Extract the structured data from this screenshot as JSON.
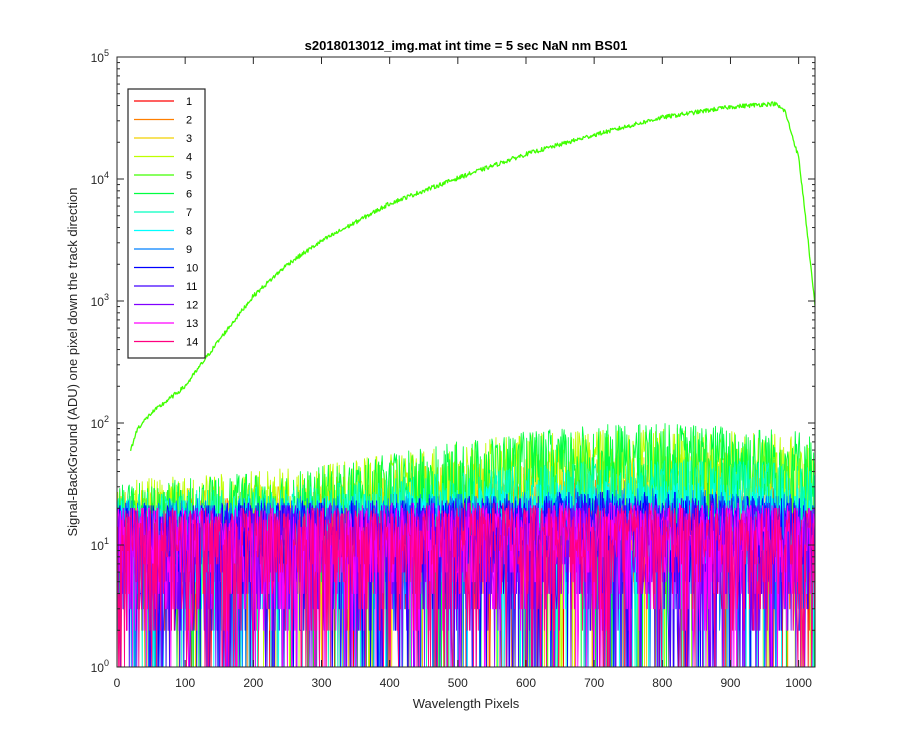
{
  "chart_data": {
    "type": "line",
    "title": "s2018013012_img.mat int time = 5 sec  NaN nm BS01",
    "xlabel": "Wavelength Pixels",
    "ylabel": "Signal-BackGround (ADU) one pixel down the track direction",
    "xlim": [
      0,
      1024
    ],
    "ylim": [
      1,
      100000
    ],
    "yscale": "log",
    "x_ticks": [
      "0",
      "100",
      "200",
      "300",
      "400",
      "500",
      "600",
      "700",
      "800",
      "900",
      "1000"
    ],
    "y_ticks": [
      {
        "base": "10",
        "exp": "0"
      },
      {
        "base": "10",
        "exp": "1"
      },
      {
        "base": "10",
        "exp": "2"
      },
      {
        "base": "10",
        "exp": "3"
      },
      {
        "base": "10",
        "exp": "4"
      },
      {
        "base": "10",
        "exp": "5"
      }
    ],
    "legend_position": "top-left",
    "grid": false,
    "series": [
      {
        "name": "1",
        "color": "#ff0000",
        "x": [
          0,
          100,
          200,
          300,
          400,
          500,
          600,
          700,
          800,
          900,
          1000,
          1024
        ],
        "values": [
          12,
          12,
          13,
          13,
          14,
          16,
          18,
          19,
          19,
          18,
          16,
          14
        ]
      },
      {
        "name": "2",
        "color": "#ff7f00",
        "x": [
          0,
          100,
          200,
          300,
          400,
          500,
          600,
          700,
          800,
          900,
          1000,
          1024
        ],
        "values": [
          13,
          13,
          14,
          15,
          16,
          18,
          20,
          21,
          21,
          20,
          18,
          15
        ]
      },
      {
        "name": "3",
        "color": "#f2d000",
        "x": [
          0,
          100,
          200,
          300,
          400,
          500,
          600,
          700,
          800,
          900,
          1000,
          1024
        ],
        "values": [
          15,
          16,
          17,
          19,
          22,
          26,
          30,
          33,
          33,
          31,
          28,
          24
        ]
      },
      {
        "name": "4",
        "color": "#bfff00",
        "x": [
          0,
          100,
          200,
          300,
          400,
          500,
          600,
          700,
          800,
          900,
          1000,
          1024
        ],
        "values": [
          18,
          20,
          22,
          25,
          30,
          38,
          44,
          48,
          50,
          47,
          42,
          36
        ]
      },
      {
        "name": "5",
        "color": "#40ff00",
        "x": [
          20,
          30,
          50,
          100,
          150,
          200,
          250,
          300,
          400,
          500,
          600,
          700,
          800,
          900,
          950,
          965,
          980,
          1000,
          1010,
          1024
        ],
        "values": [
          60,
          90,
          120,
          200,
          480,
          1100,
          2000,
          3100,
          6300,
          10200,
          16000,
          23000,
          32000,
          39000,
          41000,
          41500,
          36000,
          15000,
          5000,
          900
        ]
      },
      {
        "name": "6",
        "color": "#00ff40",
        "x": [
          0,
          100,
          200,
          300,
          400,
          500,
          600,
          700,
          800,
          900,
          1000,
          1024
        ],
        "values": [
          17,
          19,
          21,
          24,
          30,
          38,
          46,
          52,
          54,
          52,
          48,
          42
        ]
      },
      {
        "name": "7",
        "color": "#00ffbf",
        "x": [
          0,
          100,
          200,
          300,
          400,
          500,
          600,
          700,
          800,
          900,
          1000,
          1024
        ],
        "values": [
          14,
          15,
          16,
          17,
          19,
          22,
          25,
          27,
          28,
          27,
          25,
          22
        ]
      },
      {
        "name": "8",
        "color": "#00ffff",
        "x": [
          0,
          100,
          200,
          300,
          400,
          500,
          600,
          700,
          800,
          900,
          1000,
          1024
        ],
        "values": [
          13,
          13,
          14,
          14,
          15,
          16,
          17,
          18,
          18,
          17,
          16,
          14
        ]
      },
      {
        "name": "9",
        "color": "#0080ff",
        "x": [
          0,
          100,
          200,
          300,
          400,
          500,
          600,
          700,
          800,
          900,
          1000,
          1024
        ],
        "values": [
          13,
          13,
          13,
          14,
          14,
          15,
          15,
          16,
          16,
          15,
          14,
          13
        ]
      },
      {
        "name": "10",
        "color": "#0000ff",
        "x": [
          0,
          100,
          200,
          300,
          400,
          500,
          600,
          700,
          800,
          900,
          1000,
          1024
        ],
        "values": [
          12,
          12,
          12,
          13,
          13,
          14,
          14,
          15,
          15,
          14,
          13,
          12
        ]
      },
      {
        "name": "11",
        "color": "#4000ff",
        "x": [
          0,
          100,
          200,
          300,
          400,
          500,
          600,
          700,
          800,
          900,
          1000,
          1024
        ],
        "values": [
          11,
          11,
          12,
          12,
          12,
          13,
          13,
          13,
          13,
          13,
          12,
          11
        ]
      },
      {
        "name": "12",
        "color": "#8000ff",
        "x": [
          0,
          100,
          200,
          300,
          400,
          500,
          600,
          700,
          800,
          900,
          1000,
          1024
        ],
        "values": [
          11,
          11,
          11,
          12,
          12,
          12,
          12,
          12,
          12,
          12,
          11,
          11
        ]
      },
      {
        "name": "13",
        "color": "#ff00ff",
        "x": [
          0,
          100,
          200,
          300,
          400,
          500,
          600,
          700,
          800,
          900,
          1000,
          1024
        ],
        "values": [
          11,
          11,
          11,
          11,
          12,
          12,
          12,
          12,
          12,
          12,
          11,
          11
        ]
      },
      {
        "name": "14",
        "color": "#ff0080",
        "x": [
          0,
          100,
          200,
          300,
          400,
          500,
          600,
          700,
          800,
          900,
          1000,
          1024
        ],
        "values": [
          11,
          11,
          11,
          11,
          11,
          12,
          12,
          12,
          12,
          11,
          11,
          11
        ]
      }
    ]
  }
}
